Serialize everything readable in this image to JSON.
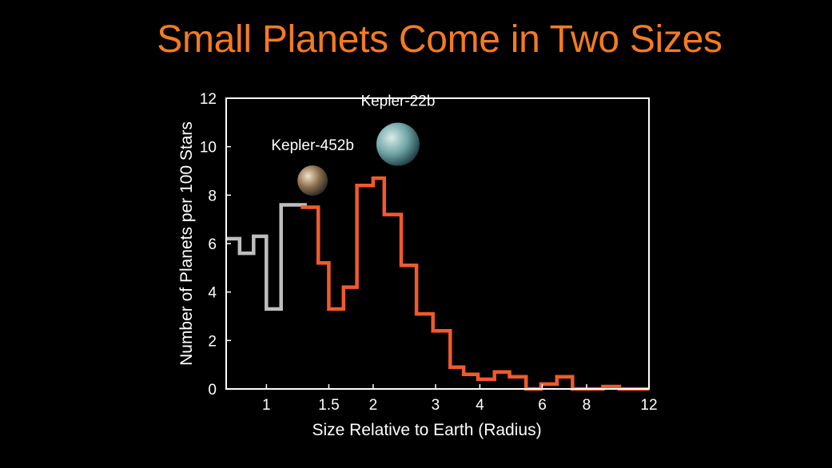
{
  "slide": {
    "title": "Small Planets Come in Two Sizes",
    "title_color": "#F47B20",
    "background": "#000000"
  },
  "chart_data": {
    "type": "histogram-step",
    "title": "Small Planets Come in Two Sizes",
    "xlabel": "Size Relative to Earth (Radius)",
    "ylabel": "Number of Planets per 100 Stars",
    "x_scale": "log",
    "xlim": [
      0.77,
      12
    ],
    "ylim": [
      0,
      12
    ],
    "x_ticks": [
      1,
      1.5,
      2,
      3,
      4,
      6,
      8,
      12
    ],
    "x_tick_labels": [
      "1",
      "1.5",
      "2",
      "3",
      "4",
      "6",
      "8",
      "12"
    ],
    "y_ticks": [
      0,
      2,
      4,
      6,
      8,
      10,
      12
    ],
    "y_tick_labels": [
      "0",
      "2",
      "4",
      "6",
      "8",
      "10",
      "12"
    ],
    "grid": false,
    "legend": "none",
    "series": [
      {
        "color": "#BEBEBE",
        "style": "incomplete survey region",
        "bin_edges": [
          0.77,
          0.84,
          0.92,
          1.0,
          1.1,
          1.2,
          1.3
        ],
        "values": [
          6.2,
          5.6,
          6.3,
          3.3,
          7.6,
          7.6
        ]
      },
      {
        "color": "#F15A2B",
        "bin_edges": [
          1.25,
          1.4,
          1.5,
          1.65,
          1.8,
          2.0,
          2.15,
          2.4,
          2.65,
          2.95,
          3.3,
          3.6,
          3.95,
          4.4,
          4.85,
          5.4,
          5.95,
          6.6,
          7.3,
          8.0,
          8.9,
          9.9,
          10.8,
          12.0
        ],
        "values": [
          7.5,
          5.2,
          3.3,
          4.2,
          8.4,
          8.7,
          7.2,
          5.1,
          3.1,
          2.4,
          0.9,
          0.6,
          0.4,
          0.7,
          0.5,
          0.0,
          0.2,
          0.5,
          0.0,
          0.0,
          0.1,
          0.0,
          0.0
        ]
      }
    ],
    "annotations": [
      {
        "label": "Kepler-452b",
        "x": 1.35,
        "y": 8.6,
        "icon": "planet-kepler-452b",
        "colors": [
          "#F3E3C8",
          "#8A6C4B",
          "#2A2A2A"
        ]
      },
      {
        "label": "Kepler-22b",
        "x": 2.35,
        "y": 10.1,
        "icon": "planet-kepler-22b",
        "colors": [
          "#D8ECEA",
          "#6FA3A4",
          "#1E3D45"
        ]
      }
    ],
    "colors": {
      "axis": "#FFFFFF",
      "text": "#FFFFFF"
    }
  }
}
